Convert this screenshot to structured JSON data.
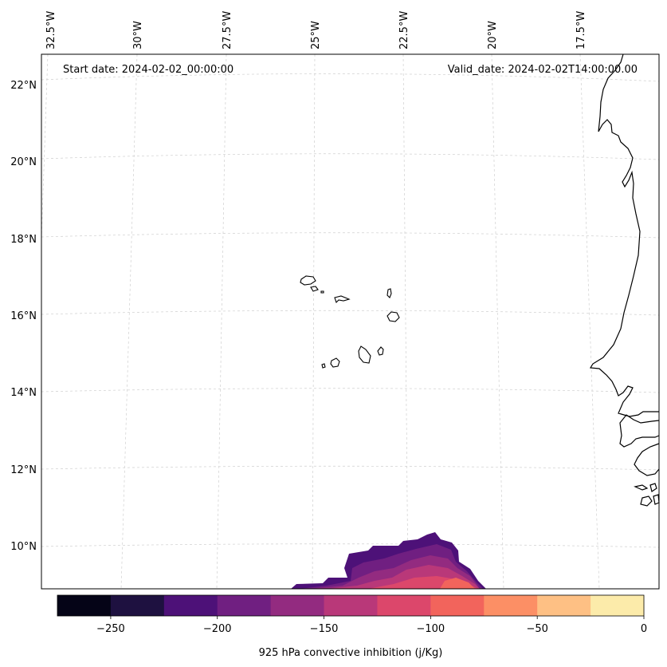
{
  "map": {
    "start_date": "Start date: 2024-02-02_00:00:00",
    "valid_date": "Valid_date: 2024-02-02T14:00:00.00",
    "lon_labels": [
      "32.5°W",
      "30°W",
      "27.5°W",
      "25°W",
      "22.5°W",
      "20°W",
      "17.5°W"
    ],
    "lat_labels": [
      "22°N",
      "20°N",
      "18°N",
      "16°N",
      "14°N",
      "12°N",
      "10°N"
    ],
    "features": [
      "cape-verde-islands",
      "west-africa-coastline",
      "convective-inhibition-field"
    ]
  },
  "colorbar": {
    "label": "925 hPa convective inhibition (j/Kg)",
    "tick_labels": [
      "−250",
      "−200",
      "−150",
      "−100",
      "−50",
      "0"
    ],
    "colors": [
      "#050417",
      "#1e1140",
      "#4d1178",
      "#701f81",
      "#932b80",
      "#b93879",
      "#dc476b",
      "#f2645c",
      "#fc8f65",
      "#fec084",
      "#fcebaa"
    ]
  }
}
